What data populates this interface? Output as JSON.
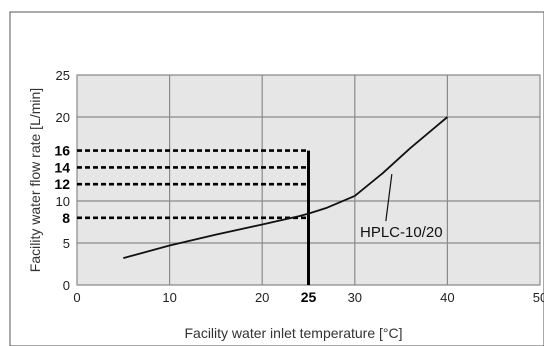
{
  "chart_data": {
    "type": "line",
    "xlabel": "Facility water inlet temperature [°C]",
    "ylabel": "Facility water flow rate [L/min]",
    "xlim": [
      0,
      50
    ],
    "ylim": [
      0,
      25
    ],
    "grid": true,
    "x_ticks": [
      {
        "value": 0,
        "label": "0",
        "bold": false
      },
      {
        "value": 10,
        "label": "10",
        "bold": false
      },
      {
        "value": 20,
        "label": "20",
        "bold": false
      },
      {
        "value": 25,
        "label": "25",
        "bold": true
      },
      {
        "value": 30,
        "label": "30",
        "bold": false
      },
      {
        "value": 40,
        "label": "40",
        "bold": false
      },
      {
        "value": 50,
        "label": "50",
        "bold": false
      }
    ],
    "y_ticks": [
      {
        "value": 0,
        "label": "0",
        "bold": false
      },
      {
        "value": 5,
        "label": "5",
        "bold": false
      },
      {
        "value": 8,
        "label": "8",
        "bold": true
      },
      {
        "value": 10,
        "label": "10",
        "bold": false
      },
      {
        "value": 12,
        "label": "12",
        "bold": true
      },
      {
        "value": 14,
        "label": "14",
        "bold": true
      },
      {
        "value": 16,
        "label": "16",
        "bold": true
      },
      {
        "value": 20,
        "label": "20",
        "bold": false
      },
      {
        "value": 25,
        "label": "25",
        "bold": false
      }
    ],
    "series": [
      {
        "name": "HPLC-10/20",
        "color": "#111111",
        "x": [
          5,
          10,
          15,
          20,
          24,
          25,
          27,
          30,
          33,
          36,
          40
        ],
        "y": [
          3.2,
          4.7,
          6.0,
          7.2,
          8.2,
          8.5,
          9.2,
          10.6,
          13.3,
          16.3,
          20.0
        ]
      }
    ],
    "reference_lines": {
      "x_value": 25,
      "y_values": [
        8,
        12,
        14,
        16
      ]
    },
    "annotation": {
      "text": "HPLC-10/20",
      "points_to": {
        "x": 34,
        "y": 13.2
      }
    }
  }
}
